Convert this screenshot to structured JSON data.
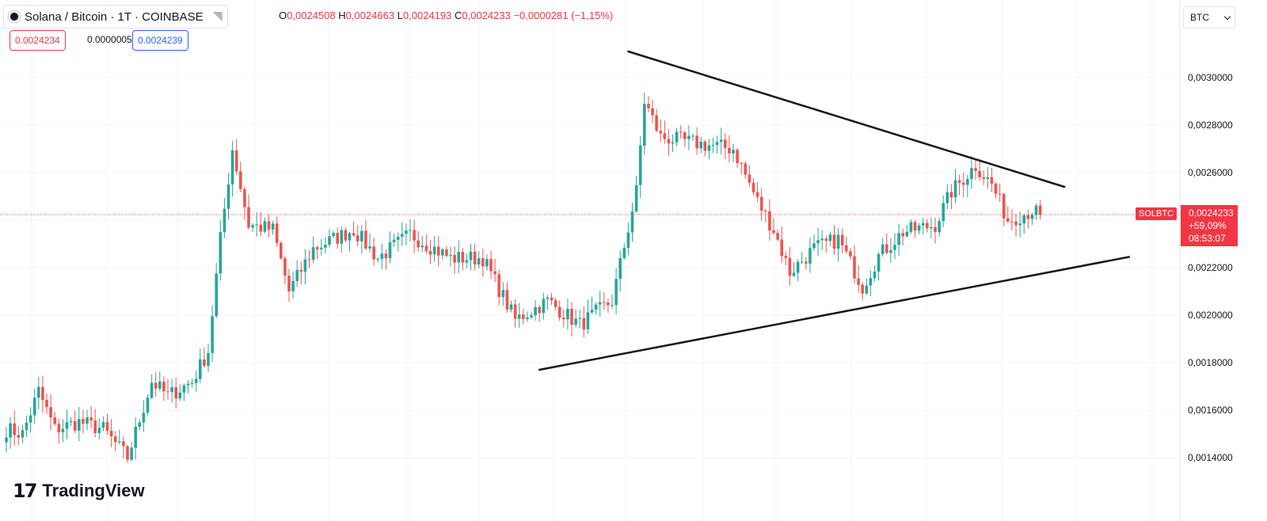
{
  "header": {
    "symbol_title": "Solana / Bitcoin · 1T · COINBASE",
    "ohlc": {
      "open_label": "O",
      "open": "0,0024508",
      "high_label": "H",
      "high": "0,0024663",
      "low_label": "L",
      "low": "0,0024193",
      "close_label": "C",
      "close": "0,0024233",
      "change": "−0,0000281 (−1,15%)"
    },
    "sell_price": "0.0024234",
    "spread": "0.0000005",
    "buy_price": "0.0024239"
  },
  "currency_selector": {
    "value": "BTC"
  },
  "price_scale": {
    "symbol_tag": "SOLBTC",
    "last_price": "0,0024233",
    "change_pct": "+59,09%",
    "countdown": "08:53:07"
  },
  "branding": {
    "logo_text": "TradingView",
    "logo_mark": "17"
  },
  "colors": {
    "up": "#26a69a",
    "down": "#ef5350",
    "trendline": "#131722",
    "last_price": "#f23645"
  },
  "icons": {
    "symbol": "solana-coin-icon",
    "flag": "flag-icon",
    "chevron": "chevron-down-icon"
  },
  "chart_data": {
    "type": "candlestick",
    "title": "Solana / Bitcoin · 1T · COINBASE",
    "ylim": [
      0.0012,
      0.00322
    ],
    "y_ticks": [
      "0,0014000",
      "0,0016000",
      "0,0018000",
      "0,0020000",
      "0,0022000",
      "0,0024000",
      "0,0026000",
      "0,0028000",
      "0,0030000"
    ],
    "y_tick_values": [
      0.0014,
      0.0016,
      0.0018,
      0.002,
      0.0022,
      0.0024,
      0.0026,
      0.0028,
      0.003
    ],
    "grid": true,
    "last_price": 0.0024233,
    "close_anchors": [
      [
        0,
        0.00152
      ],
      [
        4,
        0.0015
      ],
      [
        8,
        0.00168
      ],
      [
        12,
        0.00152
      ],
      [
        18,
        0.00155
      ],
      [
        24,
        0.00152
      ],
      [
        30,
        0.0014
      ],
      [
        36,
        0.00172
      ],
      [
        40,
        0.00166
      ],
      [
        46,
        0.00172
      ],
      [
        50,
        0.00185
      ],
      [
        53,
        0.00232
      ],
      [
        56,
        0.0027
      ],
      [
        60,
        0.00238
      ],
      [
        66,
        0.00236
      ],
      [
        70,
        0.0021
      ],
      [
        76,
        0.00228
      ],
      [
        86,
        0.00236
      ],
      [
        92,
        0.00224
      ],
      [
        100,
        0.00234
      ],
      [
        110,
        0.00224
      ],
      [
        118,
        0.00224
      ],
      [
        126,
        0.00198
      ],
      [
        134,
        0.00206
      ],
      [
        142,
        0.00196
      ],
      [
        150,
        0.00206
      ],
      [
        156,
        0.00252
      ],
      [
        158,
        0.0029
      ],
      [
        162,
        0.00275
      ],
      [
        172,
        0.00272
      ],
      [
        180,
        0.0027
      ],
      [
        186,
        0.00248
      ],
      [
        190,
        0.00236
      ],
      [
        194,
        0.00218
      ],
      [
        200,
        0.00228
      ],
      [
        206,
        0.00232
      ],
      [
        212,
        0.00212
      ],
      [
        216,
        0.00225
      ],
      [
        222,
        0.00235
      ],
      [
        230,
        0.00238
      ],
      [
        234,
        0.00252
      ],
      [
        240,
        0.00263
      ],
      [
        244,
        0.00255
      ],
      [
        248,
        0.0024
      ],
      [
        254,
        0.00244
      ],
      [
        256,
        0.0024233
      ]
    ],
    "trendlines": [
      {
        "x": [
          154,
          262
        ],
        "y": [
          0.00311,
          0.00254
        ]
      },
      {
        "x": [
          132,
          278
        ],
        "y": [
          0.00177,
          0.002245
        ]
      }
    ]
  }
}
